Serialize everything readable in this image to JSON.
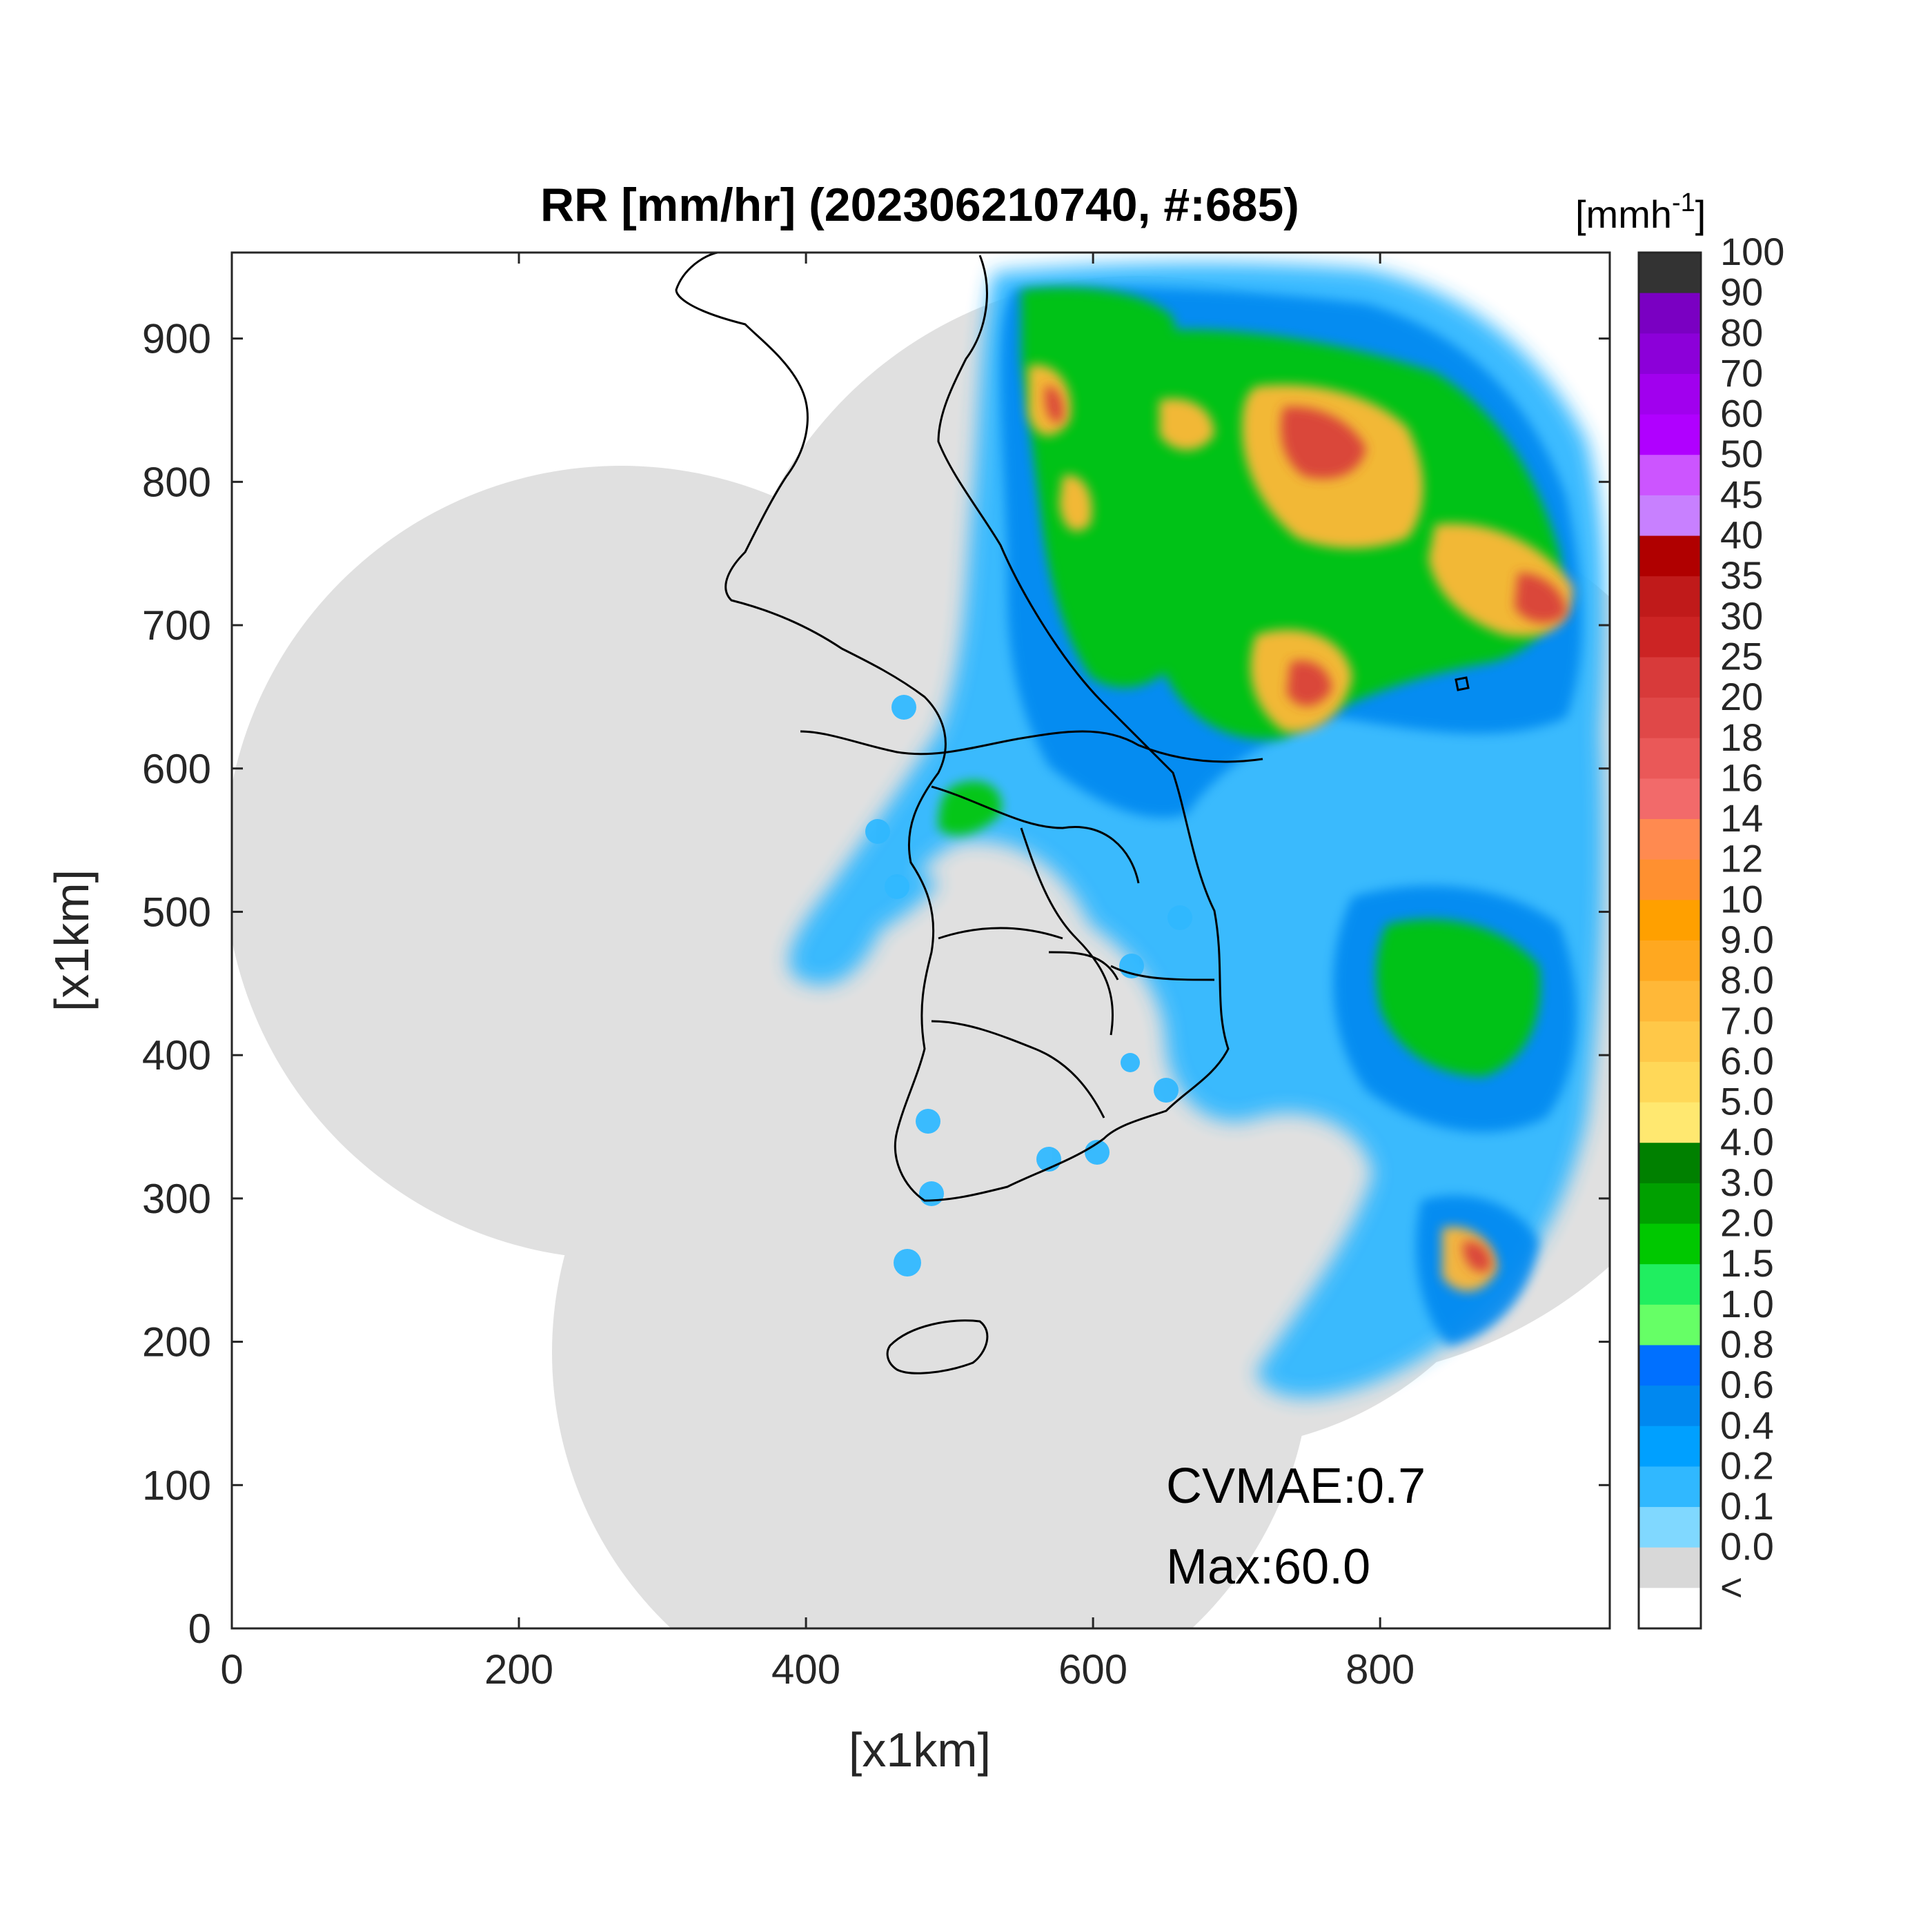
{
  "chart_data": {
    "type": "heatmap",
    "title": "RR [mm/hr] (202306210740, #:685)",
    "xlabel": "[x1km]",
    "ylabel": "[x1km]",
    "xlim": [
      0,
      960
    ],
    "ylim": [
      0,
      960
    ],
    "xticks": [
      0,
      200,
      400,
      600,
      800
    ],
    "yticks": [
      0,
      100,
      200,
      300,
      400,
      500,
      600,
      700,
      800,
      900
    ],
    "colorbar": {
      "unit_prefix": "[mmh",
      "unit_exp": "-1",
      "unit_suffix": "]",
      "labels": [
        "100",
        "90",
        "80",
        "70",
        "60",
        "50",
        "45",
        "40",
        "35",
        "30",
        "25",
        "20",
        "18",
        "16",
        "14",
        "12",
        "10",
        "9.0",
        "8.0",
        "7.0",
        "6.0",
        "5.0",
        "4.0",
        "3.0",
        "2.0",
        "1.5",
        "1.0",
        "0.8",
        "0.6",
        "0.4",
        "0.2",
        "0.1",
        "0.0",
        "<"
      ],
      "colors": [
        "#333333",
        "#7a00c2",
        "#8c00d9",
        "#a100ee",
        "#b000ff",
        "#cc55ff",
        "#c880ff",
        "#b00000",
        "#c01a1a",
        "#cc2424",
        "#d83a3a",
        "#e04848",
        "#ea5858",
        "#f26a6a",
        "#ff8a50",
        "#ff9030",
        "#ffa000",
        "#ffa820",
        "#ffb838",
        "#ffc848",
        "#ffd858",
        "#ffe870",
        "#008000",
        "#00a000",
        "#00c800",
        "#20ee60",
        "#66ff66",
        "#0070ff",
        "#0088f0",
        "#00a0ff",
        "#30b8ff",
        "#80d8ff",
        "#d8d8d8",
        "#ffffff"
      ]
    },
    "annotations": {
      "cvmae": "CVMAE:0.7",
      "max": "Max:60.0"
    }
  }
}
